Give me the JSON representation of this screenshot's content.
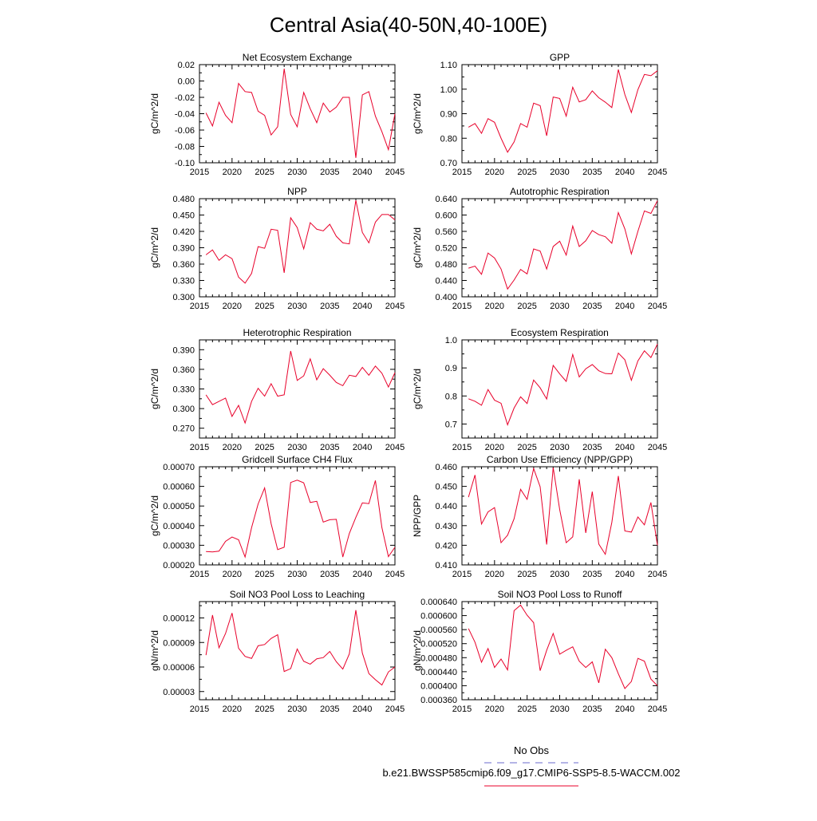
{
  "page_title": "Central Asia(40-50N,40-100E)",
  "legend": {
    "obs_label": "No Obs",
    "model_label": "b.e21.BWSSP585cmip6.f09_g17.CMIP6-SSP5-8.5-WACCM.002",
    "obs_color": "#6a6acd",
    "model_color": "#e8002a"
  },
  "chart_data": [
    {
      "type": "line",
      "title": "Net Ecosystem Exchange",
      "ylabel": "gC/m^2/d",
      "xlim": [
        2015,
        2045
      ],
      "ylim": [
        -0.1,
        0.02
      ],
      "xticks": [
        2015,
        2020,
        2025,
        2030,
        2035,
        2040,
        2045
      ],
      "xtick_labels": [
        "2015",
        "2020",
        "2025",
        "2030",
        "2035",
        "2040",
        "2045"
      ],
      "yticks": [
        -0.1,
        -0.08,
        -0.06,
        -0.04,
        -0.02,
        0.0,
        0.02
      ],
      "ytick_labels": [
        "-0.10",
        "-0.08",
        "-0.06",
        "-0.04",
        "-0.02",
        "0.00",
        "0.02"
      ],
      "x": [
        2016,
        2017,
        2018,
        2019,
        2020,
        2021,
        2022,
        2023,
        2024,
        2025,
        2026,
        2027,
        2028,
        2029,
        2030,
        2031,
        2032,
        2033,
        2034,
        2035,
        2036,
        2037,
        2038,
        2039,
        2040,
        2041,
        2042,
        2043,
        2044,
        2045
      ],
      "series": [
        {
          "name": "b.e21.BWSSP585cmip6.f09_g17.CMIP6-SSP5-8.5-WACCM.002",
          "color": "#e8002a",
          "values": [
            -0.039,
            -0.055,
            -0.026,
            -0.042,
            -0.051,
            -0.003,
            -0.013,
            -0.014,
            -0.037,
            -0.042,
            -0.066,
            -0.056,
            0.015,
            -0.041,
            -0.056,
            -0.014,
            -0.034,
            -0.051,
            -0.027,
            -0.038,
            -0.032,
            -0.02,
            -0.02,
            -0.094,
            -0.017,
            -0.013,
            -0.043,
            -0.062,
            -0.084,
            -0.04
          ]
        }
      ]
    },
    {
      "type": "line",
      "title": "GPP",
      "ylabel": "gC/m^2/d",
      "xlim": [
        2015,
        2045
      ],
      "ylim": [
        0.7,
        1.1
      ],
      "xticks": [
        2015,
        2020,
        2025,
        2030,
        2035,
        2040,
        2045
      ],
      "xtick_labels": [
        "2015",
        "2020",
        "2025",
        "2030",
        "2035",
        "2040",
        "2045"
      ],
      "yticks": [
        0.7,
        0.8,
        0.9,
        1.0,
        1.1
      ],
      "ytick_labels": [
        "0.70",
        "0.80",
        "0.90",
        "1.00",
        "1.10"
      ],
      "x": [
        2016,
        2017,
        2018,
        2019,
        2020,
        2021,
        2022,
        2023,
        2024,
        2025,
        2026,
        2027,
        2028,
        2029,
        2030,
        2031,
        2032,
        2033,
        2034,
        2035,
        2036,
        2037,
        2038,
        2039,
        2040,
        2041,
        2042,
        2043,
        2044,
        2045
      ],
      "series": [
        {
          "name": "b.e21.BWSSP585cmip6.f09_g17.CMIP6-SSP5-8.5-WACCM.002",
          "color": "#e8002a",
          "values": [
            0.845,
            0.86,
            0.82,
            0.88,
            0.865,
            0.8,
            0.743,
            0.785,
            0.86,
            0.845,
            0.943,
            0.933,
            0.81,
            0.968,
            0.962,
            0.89,
            1.008,
            0.948,
            0.957,
            0.993,
            0.965,
            0.947,
            0.925,
            1.08,
            0.978,
            0.905,
            0.998,
            1.06,
            1.055,
            1.075
          ]
        }
      ]
    },
    {
      "type": "line",
      "title": "NPP",
      "ylabel": "gC/m^2/d",
      "xlim": [
        2015,
        2045
      ],
      "ylim": [
        0.3,
        0.48
      ],
      "xticks": [
        2015,
        2020,
        2025,
        2030,
        2035,
        2040,
        2045
      ],
      "xtick_labels": [
        "2015",
        "2020",
        "2025",
        "2030",
        "2035",
        "2040",
        "2045"
      ],
      "yticks": [
        0.3,
        0.33,
        0.36,
        0.39,
        0.42,
        0.45,
        0.48
      ],
      "ytick_labels": [
        "0.300",
        "0.330",
        "0.360",
        "0.390",
        "0.420",
        "0.450",
        "0.480"
      ],
      "x": [
        2016,
        2017,
        2018,
        2019,
        2020,
        2021,
        2022,
        2023,
        2024,
        2025,
        2026,
        2027,
        2028,
        2029,
        2030,
        2031,
        2032,
        2033,
        2034,
        2035,
        2036,
        2037,
        2038,
        2039,
        2040,
        2041,
        2042,
        2043,
        2044,
        2045
      ],
      "series": [
        {
          "name": "b.e21.BWSSP585cmip6.f09_g17.CMIP6-SSP5-8.5-WACCM.002",
          "color": "#e8002a",
          "values": [
            0.377,
            0.386,
            0.367,
            0.377,
            0.37,
            0.336,
            0.325,
            0.343,
            0.392,
            0.389,
            0.424,
            0.422,
            0.344,
            0.445,
            0.427,
            0.388,
            0.436,
            0.424,
            0.421,
            0.433,
            0.411,
            0.399,
            0.397,
            0.477,
            0.418,
            0.399,
            0.437,
            0.451,
            0.451,
            0.441
          ]
        }
      ]
    },
    {
      "type": "line",
      "title": "Autotrophic Respiration",
      "ylabel": "gC/m^2/d",
      "xlim": [
        2015,
        2045
      ],
      "ylim": [
        0.4,
        0.64
      ],
      "xticks": [
        2015,
        2020,
        2025,
        2030,
        2035,
        2040,
        2045
      ],
      "xtick_labels": [
        "2015",
        "2020",
        "2025",
        "2030",
        "2035",
        "2040",
        "2045"
      ],
      "yticks": [
        0.4,
        0.44,
        0.48,
        0.52,
        0.56,
        0.6,
        0.64
      ],
      "ytick_labels": [
        "0.400",
        "0.440",
        "0.480",
        "0.520",
        "0.560",
        "0.600",
        "0.640"
      ],
      "x": [
        2016,
        2017,
        2018,
        2019,
        2020,
        2021,
        2022,
        2023,
        2024,
        2025,
        2026,
        2027,
        2028,
        2029,
        2030,
        2031,
        2032,
        2033,
        2034,
        2035,
        2036,
        2037,
        2038,
        2039,
        2040,
        2041,
        2042,
        2043,
        2044,
        2045
      ],
      "series": [
        {
          "name": "b.e21.BWSSP585cmip6.f09_g17.CMIP6-SSP5-8.5-WACCM.002",
          "color": "#e8002a",
          "values": [
            0.47,
            0.475,
            0.455,
            0.507,
            0.495,
            0.468,
            0.419,
            0.441,
            0.467,
            0.456,
            0.517,
            0.512,
            0.468,
            0.523,
            0.536,
            0.502,
            0.573,
            0.523,
            0.537,
            0.562,
            0.552,
            0.547,
            0.531,
            0.606,
            0.566,
            0.505,
            0.56,
            0.61,
            0.604,
            0.635
          ]
        }
      ]
    },
    {
      "type": "line",
      "title": "Heterotrophic Respiration",
      "ylabel": "gC/m^2/d",
      "xlim": [
        2015,
        2045
      ],
      "ylim": [
        0.255,
        0.405
      ],
      "xticks": [
        2015,
        2020,
        2025,
        2030,
        2035,
        2040,
        2045
      ],
      "xtick_labels": [
        "2015",
        "2020",
        "2025",
        "2030",
        "2035",
        "2040",
        "2045"
      ],
      "yticks": [
        0.27,
        0.3,
        0.33,
        0.36,
        0.39
      ],
      "ytick_labels": [
        "0.270",
        "0.300",
        "0.330",
        "0.360",
        "0.390"
      ],
      "x": [
        2016,
        2017,
        2018,
        2019,
        2020,
        2021,
        2022,
        2023,
        2024,
        2025,
        2026,
        2027,
        2028,
        2029,
        2030,
        2031,
        2032,
        2033,
        2034,
        2035,
        2036,
        2037,
        2038,
        2039,
        2040,
        2041,
        2042,
        2043,
        2044,
        2045
      ],
      "series": [
        {
          "name": "b.e21.BWSSP585cmip6.f09_g17.CMIP6-SSP5-8.5-WACCM.002",
          "color": "#e8002a",
          "values": [
            0.321,
            0.306,
            0.311,
            0.316,
            0.288,
            0.305,
            0.278,
            0.311,
            0.331,
            0.319,
            0.338,
            0.319,
            0.321,
            0.388,
            0.343,
            0.35,
            0.376,
            0.344,
            0.361,
            0.351,
            0.34,
            0.335,
            0.351,
            0.349,
            0.363,
            0.351,
            0.365,
            0.354,
            0.333,
            0.355
          ]
        }
      ]
    },
    {
      "type": "line",
      "title": "Ecosystem Respiration",
      "ylabel": "gC/m^2/d",
      "xlim": [
        2015,
        2045
      ],
      "ylim": [
        0.65,
        1.0
      ],
      "xticks": [
        2015,
        2020,
        2025,
        2030,
        2035,
        2040,
        2045
      ],
      "xtick_labels": [
        "2015",
        "2020",
        "2025",
        "2030",
        "2035",
        "2040",
        "2045"
      ],
      "yticks": [
        0.7,
        0.8,
        0.9,
        1.0
      ],
      "ytick_labels": [
        "0.7",
        "0.8",
        "0.9",
        "1.0"
      ],
      "x": [
        2016,
        2017,
        2018,
        2019,
        2020,
        2021,
        2022,
        2023,
        2024,
        2025,
        2026,
        2027,
        2028,
        2029,
        2030,
        2031,
        2032,
        2033,
        2034,
        2035,
        2036,
        2037,
        2038,
        2039,
        2040,
        2041,
        2042,
        2043,
        2044,
        2045
      ],
      "series": [
        {
          "name": "b.e21.BWSSP585cmip6.f09_g17.CMIP6-SSP5-8.5-WACCM.002",
          "color": "#e8002a",
          "values": [
            0.79,
            0.781,
            0.767,
            0.823,
            0.785,
            0.774,
            0.697,
            0.757,
            0.797,
            0.773,
            0.857,
            0.829,
            0.789,
            0.909,
            0.879,
            0.852,
            0.948,
            0.868,
            0.897,
            0.912,
            0.89,
            0.88,
            0.879,
            0.953,
            0.929,
            0.856,
            0.925,
            0.961,
            0.937,
            0.985
          ]
        }
      ]
    },
    {
      "type": "line",
      "title": "Gridcell Surface CH4 Flux",
      "ylabel": "gC/m^2/d",
      "xlim": [
        2015,
        2045
      ],
      "ylim": [
        0.0002,
        0.0007
      ],
      "xticks": [
        2015,
        2020,
        2025,
        2030,
        2035,
        2040,
        2045
      ],
      "xtick_labels": [
        "2015",
        "2020",
        "2025",
        "2030",
        "2035",
        "2040",
        "2045"
      ],
      "yticks": [
        0.0002,
        0.0003,
        0.0004,
        0.0005,
        0.0006,
        0.0007
      ],
      "ytick_labels": [
        "0.00020",
        "0.00030",
        "0.00040",
        "0.00050",
        "0.00060",
        "0.00070"
      ],
      "x": [
        2016,
        2017,
        2018,
        2019,
        2020,
        2021,
        2022,
        2023,
        2024,
        2025,
        2026,
        2027,
        2028,
        2029,
        2030,
        2031,
        2032,
        2033,
        2034,
        2035,
        2036,
        2037,
        2038,
        2039,
        2040,
        2041,
        2042,
        2043,
        2044,
        2045
      ],
      "series": [
        {
          "name": "b.e21.BWSSP585cmip6.f09_g17.CMIP6-SSP5-8.5-WACCM.002",
          "color": "#e8002a",
          "values": [
            0.000268,
            0.000266,
            0.00027,
            0.00032,
            0.000342,
            0.000328,
            0.00024,
            0.00039,
            0.00051,
            0.000592,
            0.00041,
            0.000278,
            0.00029,
            0.00062,
            0.000632,
            0.000618,
            0.000518,
            0.000524,
            0.000418,
            0.00043,
            0.000432,
            0.00024,
            0.00036,
            0.000442,
            0.000516,
            0.000512,
            0.00063,
            0.00039,
            0.000242,
            0.00029
          ]
        }
      ]
    },
    {
      "type": "line",
      "title": "Carbon Use Efficiency (NPP/GPP)",
      "ylabel": "NPP/GPP",
      "xlim": [
        2015,
        2045
      ],
      "ylim": [
        0.41,
        0.46
      ],
      "xticks": [
        2015,
        2020,
        2025,
        2030,
        2035,
        2040,
        2045
      ],
      "xtick_labels": [
        "2015",
        "2020",
        "2025",
        "2030",
        "2035",
        "2040",
        "2045"
      ],
      "yticks": [
        0.41,
        0.42,
        0.43,
        0.44,
        0.45,
        0.46
      ],
      "ytick_labels": [
        "0.410",
        "0.420",
        "0.430",
        "0.440",
        "0.450",
        "0.460"
      ],
      "x": [
        2016,
        2017,
        2018,
        2019,
        2020,
        2021,
        2022,
        2023,
        2024,
        2025,
        2026,
        2027,
        2028,
        2029,
        2030,
        2031,
        2032,
        2033,
        2034,
        2035,
        2036,
        2037,
        2038,
        2039,
        2040,
        2041,
        2042,
        2043,
        2044,
        2045
      ],
      "series": [
        {
          "name": "b.e21.BWSSP585cmip6.f09_g17.CMIP6-SSP5-8.5-WACCM.002",
          "color": "#e8002a",
          "values": [
            0.4445,
            0.4558,
            0.4308,
            0.437,
            0.4392,
            0.4213,
            0.4251,
            0.4335,
            0.4485,
            0.4434,
            0.4591,
            0.4498,
            0.4204,
            0.4596,
            0.4382,
            0.4213,
            0.4243,
            0.4536,
            0.4263,
            0.4473,
            0.4206,
            0.4154,
            0.4316,
            0.4553,
            0.4273,
            0.4267,
            0.4344,
            0.4304,
            0.4418,
            0.42
          ]
        }
      ]
    },
    {
      "type": "line",
      "title": "Soil NO3 Pool Loss to Leaching",
      "ylabel": "gN/m^2/d",
      "xlim": [
        2015,
        2045
      ],
      "ylim": [
        2e-05,
        0.00014
      ],
      "xticks": [
        2015,
        2020,
        2025,
        2030,
        2035,
        2040,
        2045
      ],
      "xtick_labels": [
        "2015",
        "2020",
        "2025",
        "2030",
        "2035",
        "2040",
        "2045"
      ],
      "yticks": [
        3e-05,
        6e-05,
        9e-05,
        0.00012
      ],
      "ytick_labels": [
        "0.00003",
        "0.00006",
        "0.00009",
        "0.00012"
      ],
      "x": [
        2016,
        2017,
        2018,
        2019,
        2020,
        2021,
        2022,
        2023,
        2024,
        2025,
        2026,
        2027,
        2028,
        2029,
        2030,
        2031,
        2032,
        2033,
        2034,
        2035,
        2036,
        2037,
        2038,
        2039,
        2040,
        2041,
        2042,
        2043,
        2044,
        2045
      ],
      "series": [
        {
          "name": "b.e21.BWSSP585cmip6.f09_g17.CMIP6-SSP5-8.5-WACCM.002",
          "color": "#e8002a",
          "values": [
            7.45e-05,
            0.0001235,
            8.35e-05,
            0.000101,
            0.000126,
            8.3e-05,
            7.3e-05,
            7.05e-05,
            8.6e-05,
            8.75e-05,
            9.5e-05,
            9.95e-05,
            5.45e-05,
            5.8e-05,
            8.2e-05,
            6.7e-05,
            6.35e-05,
            7e-05,
            7.15e-05,
            7.9e-05,
            6.65e-05,
            5.75e-05,
            7.6e-05,
            0.0001295,
            7.7e-05,
            5.2e-05,
            4.45e-05,
            3.8e-05,
            5.4e-05,
            6e-05
          ]
        }
      ]
    },
    {
      "type": "line",
      "title": "Soil NO3 Pool Loss to Runoff",
      "ylabel": "gN/m^2/d",
      "xlim": [
        2015,
        2045
      ],
      "ylim": [
        0.00036,
        0.00064
      ],
      "xticks": [
        2015,
        2020,
        2025,
        2030,
        2035,
        2040,
        2045
      ],
      "xtick_labels": [
        "2015",
        "2020",
        "2025",
        "2030",
        "2035",
        "2040",
        "2045"
      ],
      "yticks": [
        0.00036,
        0.0004,
        0.00044,
        0.00048,
        0.00052,
        0.00056,
        0.0006,
        0.00064
      ],
      "ytick_labels": [
        "0.000360",
        "0.000400",
        "0.000440",
        "0.000480",
        "0.000520",
        "0.000560",
        "0.000600",
        "0.000640"
      ],
      "x": [
        2016,
        2017,
        2018,
        2019,
        2020,
        2021,
        2022,
        2023,
        2024,
        2025,
        2026,
        2027,
        2028,
        2029,
        2030,
        2031,
        2032,
        2033,
        2034,
        2035,
        2036,
        2037,
        2038,
        2039,
        2040,
        2041,
        2042,
        2043,
        2044,
        2045
      ],
      "series": [
        {
          "name": "b.e21.BWSSP585cmip6.f09_g17.CMIP6-SSP5-8.5-WACCM.002",
          "color": "#e8002a",
          "values": [
            0.000563,
            0.000524,
            0.000467,
            0.000506,
            0.000452,
            0.000476,
            0.000445,
            0.000614,
            0.00063,
            0.000601,
            0.00058,
            0.000443,
            0.000501,
            0.000549,
            0.00049,
            0.000501,
            0.000511,
            0.00047,
            0.000452,
            0.000468,
            0.000408,
            0.000504,
            0.00048,
            0.000434,
            0.000392,
            0.000412,
            0.000478,
            0.00047,
            0.000419,
            0.0004
          ]
        }
      ]
    }
  ]
}
